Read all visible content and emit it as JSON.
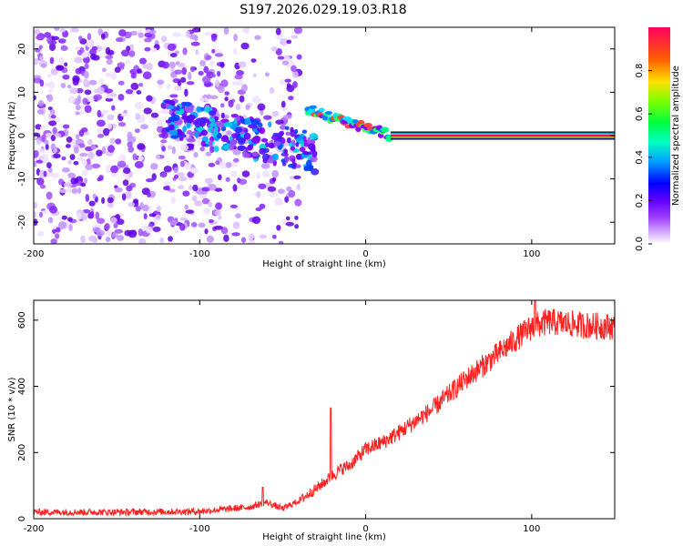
{
  "title": "S197.2026.029.19.03.R18",
  "chart_data": [
    {
      "type": "heatmap",
      "xlabel": "Height of straight line (km)",
      "ylabel": "Frequency (Hz)",
      "xlim": [
        -200,
        150
      ],
      "ylim": [
        -25,
        25
      ],
      "xticks": [
        -200,
        -100,
        0,
        100
      ],
      "yticks": [
        -20,
        -10,
        0,
        10,
        20
      ],
      "colorbar": {
        "label": "Normalized spectral amplitude",
        "range": [
          0,
          1
        ],
        "ticks": [
          "0.0",
          "0.2",
          "0.4",
          "0.6",
          "0.8"
        ],
        "colors": [
          "#ffffff",
          "#c080ff",
          "#8000ff",
          "#0000ff",
          "#00c0ff",
          "#00ff80",
          "#40ff00",
          "#c0ff00",
          "#ffc000",
          "#ff4000",
          "#ff0060"
        ]
      },
      "features": [
        {
          "name": "scattered noise",
          "x_range": [
            -200,
            -60
          ],
          "freq_range": [
            -25,
            25
          ],
          "amplitude": 0.15
        },
        {
          "name": "noisy signal band",
          "x_range": [
            -120,
            -30
          ],
          "freq_range": [
            -10,
            10
          ],
          "amplitude": 0.35
        },
        {
          "name": "chirp segment",
          "x_range": [
            -35,
            15
          ],
          "freq_range": [
            0,
            6
          ],
          "amplitude": 0.5
        },
        {
          "name": "steady tone",
          "x_range": [
            15,
            150
          ],
          "freq": 0,
          "amplitude": 0.95
        }
      ]
    },
    {
      "type": "line",
      "xlabel": "Height of straight line (km)",
      "ylabel": "SNR (10 * v/v)",
      "xlim": [
        -200,
        150
      ],
      "ylim": [
        0,
        660
      ],
      "xticks": [
        -200,
        -100,
        0,
        100
      ],
      "yticks": [
        0,
        200,
        400,
        600
      ],
      "series": [
        {
          "name": "SNR",
          "color": "#ff2020",
          "x": [
            -200,
            -150,
            -100,
            -70,
            -60,
            -50,
            -40,
            -30,
            -25,
            -20,
            -15,
            -10,
            0,
            10,
            20,
            40,
            60,
            80,
            95,
            100,
            110,
            120,
            130,
            150
          ],
          "y": [
            20,
            20,
            22,
            35,
            50,
            30,
            55,
            90,
            110,
            130,
            150,
            160,
            210,
            230,
            260,
            330,
            420,
            500,
            560,
            580,
            595,
            590,
            585,
            580
          ],
          "noise": 30,
          "peaks": [
            {
              "x": -21,
              "y": 335
            },
            {
              "x": -62,
              "y": 95
            },
            {
              "x": 102,
              "y": 665
            }
          ]
        }
      ]
    }
  ]
}
